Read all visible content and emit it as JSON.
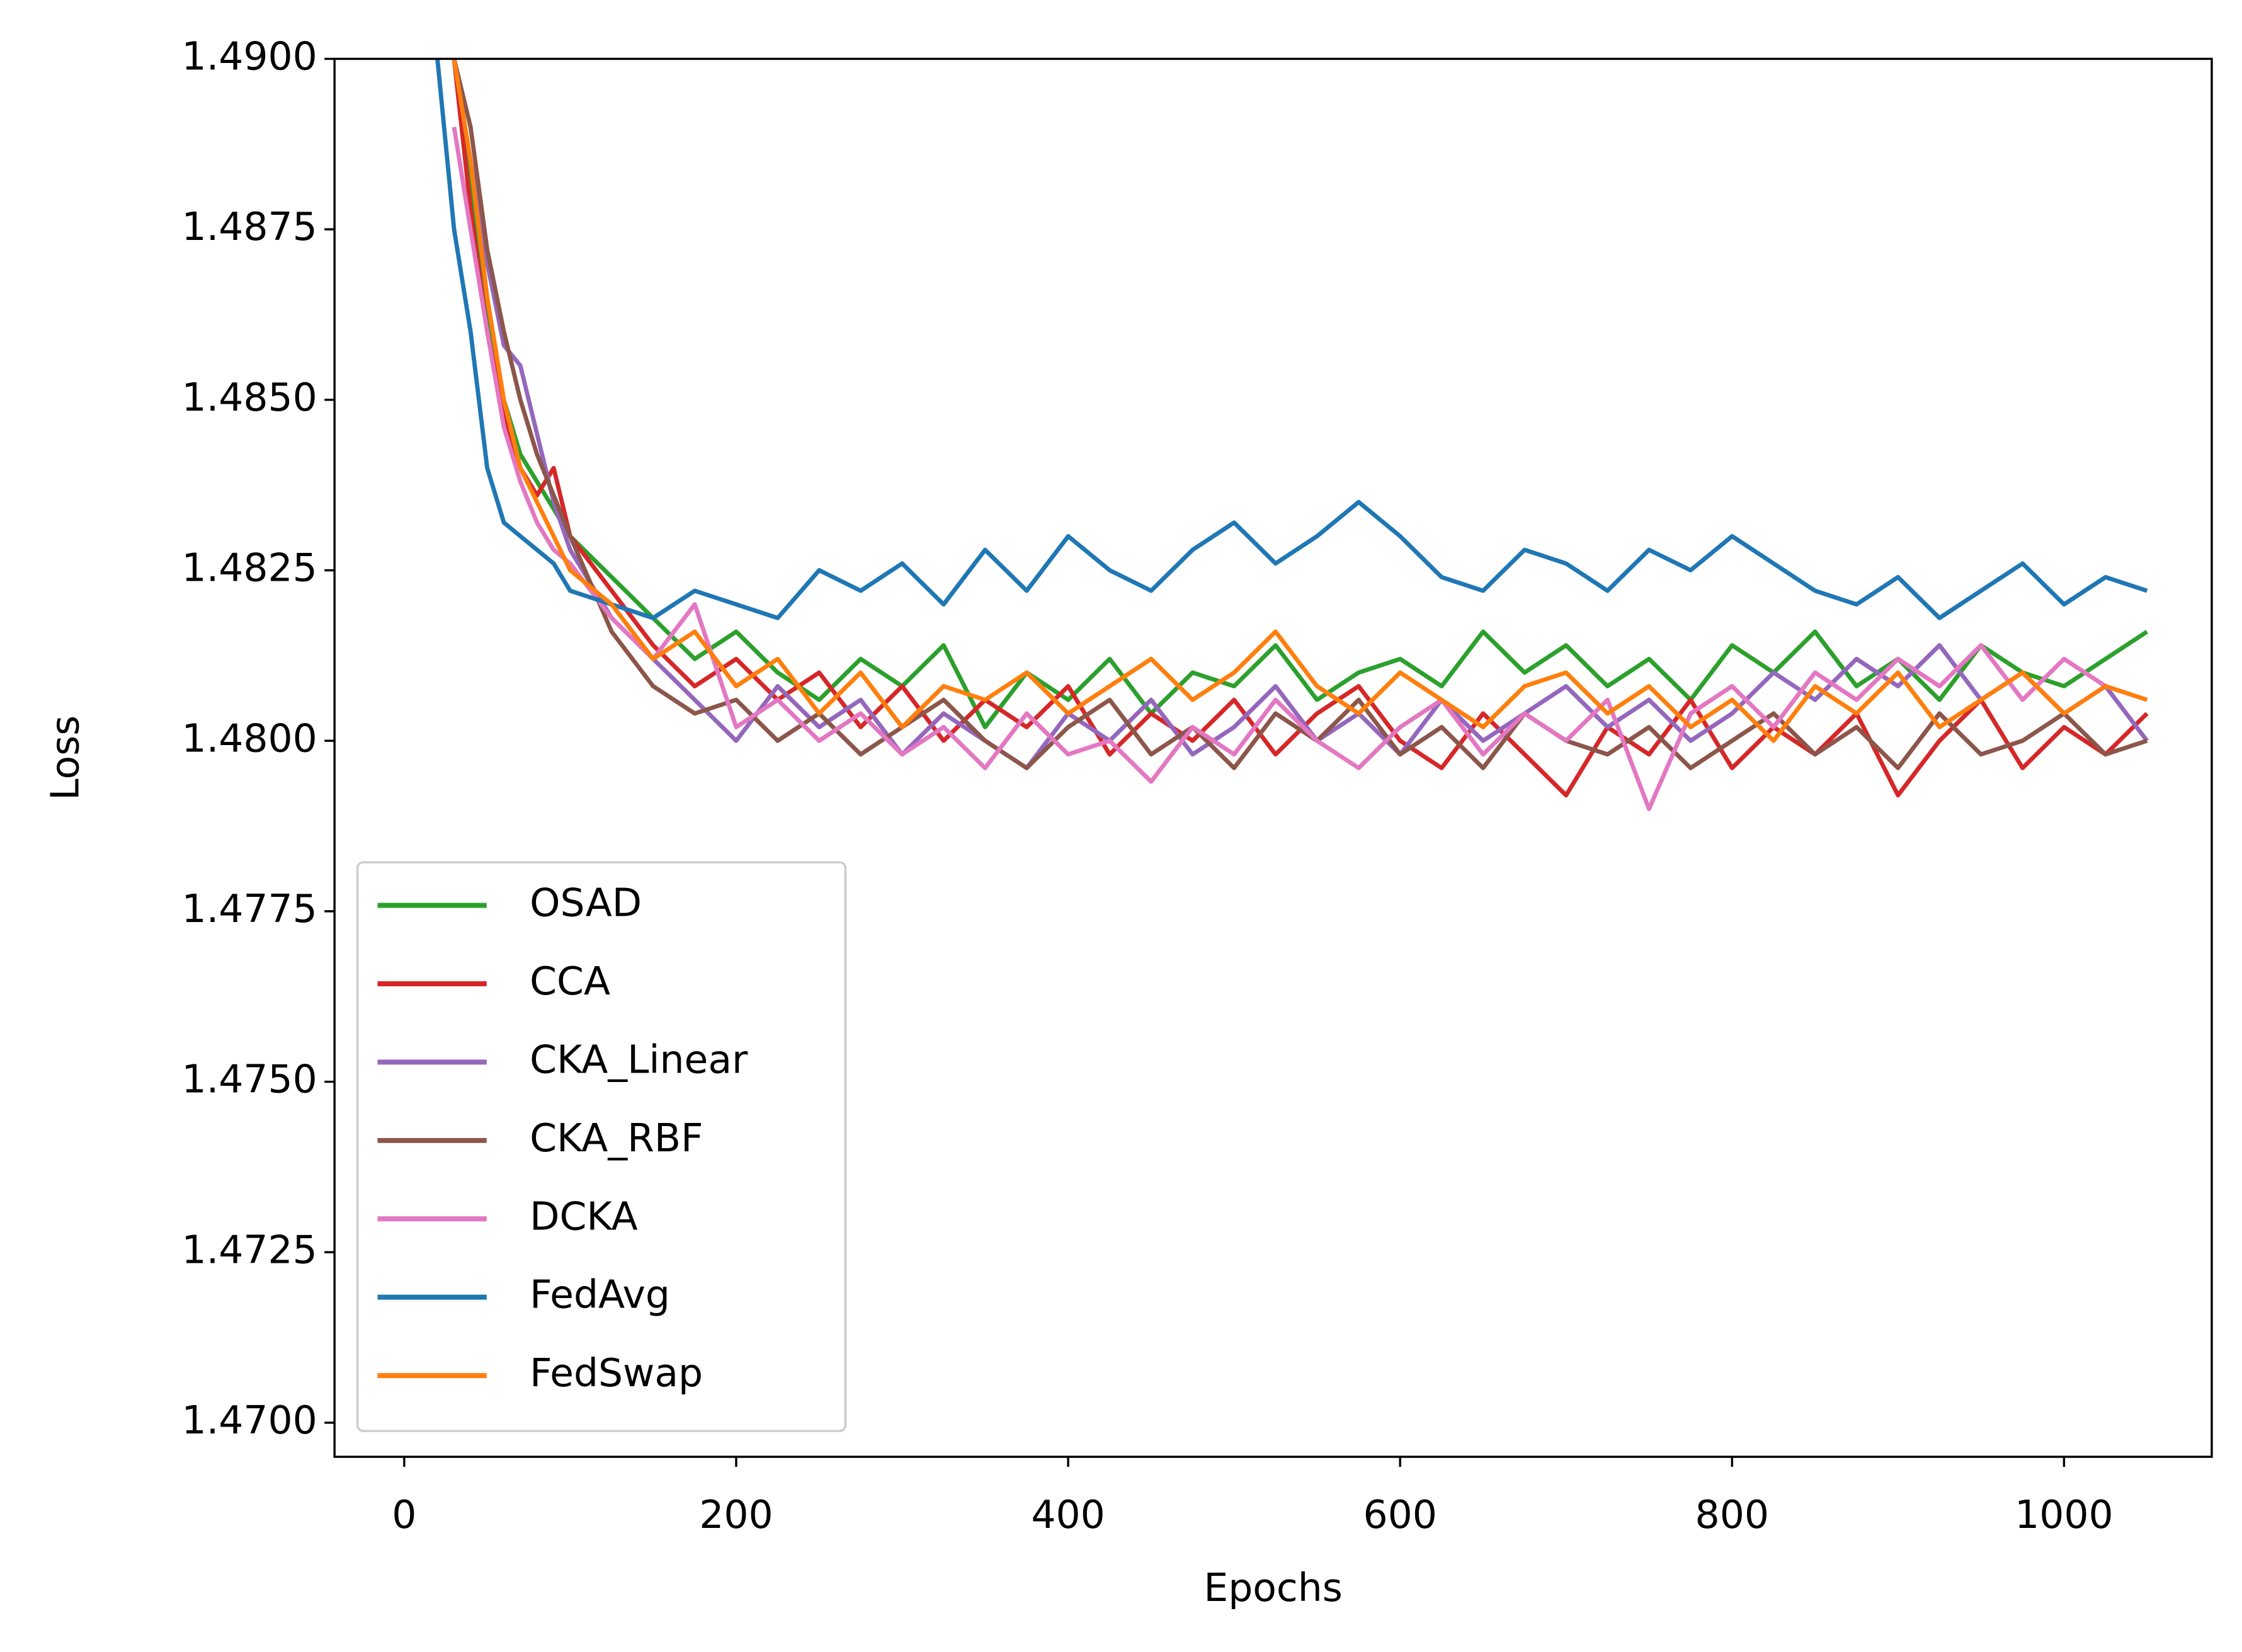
{
  "chart_data": {
    "type": "line",
    "xlabel": "Epochs",
    "ylabel": "Loss",
    "x": [
      20,
      30,
      40,
      50,
      60,
      70,
      80,
      90,
      100,
      125,
      150,
      175,
      200,
      225,
      250,
      275,
      300,
      325,
      350,
      375,
      400,
      425,
      450,
      475,
      500,
      525,
      550,
      575,
      600,
      625,
      650,
      675,
      700,
      725,
      750,
      775,
      800,
      825,
      850,
      875,
      900,
      925,
      950,
      975,
      1000,
      1025,
      1050
    ],
    "series": [
      {
        "name": "OSAD",
        "color": "#2ca02c",
        "values": [
          null,
          1.49,
          1.488,
          1.4862,
          1.485,
          1.4842,
          1.4838,
          1.4834,
          1.483,
          1.4824,
          1.4818,
          1.4812,
          1.4816,
          1.481,
          1.4806,
          1.4812,
          1.4808,
          1.4814,
          1.4802,
          1.481,
          1.4806,
          1.4812,
          1.4804,
          1.481,
          1.4808,
          1.4814,
          1.4806,
          1.481,
          1.4812,
          1.4808,
          1.4816,
          1.481,
          1.4814,
          1.4808,
          1.4812,
          1.4806,
          1.4814,
          1.481,
          1.4816,
          1.4808,
          1.4812,
          1.4806,
          1.4814,
          1.481,
          1.4808,
          1.4812,
          1.4816
        ]
      },
      {
        "name": "CCA",
        "color": "#d62728",
        "values": [
          null,
          1.49,
          1.4878,
          1.486,
          1.4848,
          1.484,
          1.4836,
          1.484,
          1.483,
          1.4822,
          1.4814,
          1.4808,
          1.4812,
          1.4806,
          1.481,
          1.4802,
          1.4808,
          1.48,
          1.4806,
          1.4802,
          1.4808,
          1.4798,
          1.4804,
          1.48,
          1.4806,
          1.4798,
          1.4804,
          1.4808,
          1.48,
          1.4796,
          1.4804,
          1.4798,
          1.4792,
          1.4802,
          1.4798,
          1.4806,
          1.4796,
          1.4802,
          1.4798,
          1.4804,
          1.4792,
          1.48,
          1.4806,
          1.4796,
          1.4802,
          1.4798,
          1.4804
        ]
      },
      {
        "name": "CKA_Linear",
        "color": "#9467bd",
        "values": [
          null,
          1.49,
          1.4885,
          1.487,
          1.4858,
          1.4855,
          1.4845,
          1.4835,
          1.4828,
          1.4818,
          1.4812,
          1.4806,
          1.48,
          1.4808,
          1.4802,
          1.4806,
          1.4798,
          1.4804,
          1.48,
          1.4796,
          1.4804,
          1.48,
          1.4806,
          1.4798,
          1.4802,
          1.4808,
          1.48,
          1.4804,
          1.4798,
          1.4806,
          1.48,
          1.4804,
          1.4808,
          1.4802,
          1.4806,
          1.48,
          1.4804,
          1.481,
          1.4806,
          1.4812,
          1.4808,
          1.4814,
          1.4806,
          1.481,
          1.4804,
          1.4808,
          1.48
        ]
      },
      {
        "name": "CKA_RBF",
        "color": "#8c564b",
        "values": [
          null,
          1.49,
          1.489,
          1.4872,
          1.486,
          1.485,
          1.4842,
          1.4836,
          1.483,
          1.4816,
          1.4808,
          1.4804,
          1.4806,
          1.48,
          1.4804,
          1.4798,
          1.4802,
          1.4806,
          1.48,
          1.4796,
          1.4802,
          1.4806,
          1.4798,
          1.4802,
          1.4796,
          1.4804,
          1.48,
          1.4806,
          1.4798,
          1.4802,
          1.4796,
          1.4804,
          1.48,
          1.4798,
          1.4802,
          1.4796,
          1.48,
          1.4804,
          1.4798,
          1.4802,
          1.4796,
          1.4804,
          1.4798,
          1.48,
          1.4804,
          1.4798,
          1.48
        ]
      },
      {
        "name": "DCKA",
        "color": "#e377c2",
        "values": [
          null,
          1.489,
          1.4875,
          1.486,
          1.4846,
          1.4838,
          1.4832,
          1.4828,
          1.4826,
          1.4818,
          1.4812,
          1.482,
          1.4802,
          1.4806,
          1.48,
          1.4804,
          1.4798,
          1.4802,
          1.4796,
          1.4804,
          1.4798,
          1.48,
          1.4794,
          1.4802,
          1.4798,
          1.4806,
          1.48,
          1.4796,
          1.4802,
          1.4806,
          1.4798,
          1.4804,
          1.48,
          1.4806,
          1.479,
          1.4804,
          1.4808,
          1.4802,
          1.481,
          1.4806,
          1.4812,
          1.4808,
          1.4814,
          1.4806,
          1.4812,
          1.4808,
          1.4806
        ]
      },
      {
        "name": "FedAvg",
        "color": "#1f77b4",
        "values": [
          1.49,
          1.4875,
          1.486,
          1.484,
          1.4832,
          1.483,
          1.4828,
          1.4826,
          1.4822,
          1.482,
          1.4818,
          1.4822,
          1.482,
          1.4818,
          1.4825,
          1.4822,
          1.4826,
          1.482,
          1.4828,
          1.4822,
          1.483,
          1.4825,
          1.4822,
          1.4828,
          1.4832,
          1.4826,
          1.483,
          1.4835,
          1.483,
          1.4824,
          1.4822,
          1.4828,
          1.4826,
          1.4822,
          1.4828,
          1.4825,
          1.483,
          1.4826,
          1.4822,
          1.482,
          1.4824,
          1.4818,
          1.4822,
          1.4826,
          1.482,
          1.4824,
          1.4822
        ]
      },
      {
        "name": "FedSwap",
        "color": "#ff7f0e",
        "values": [
          null,
          1.49,
          1.4885,
          1.4865,
          1.485,
          1.484,
          1.4835,
          1.483,
          1.4825,
          1.482,
          1.4812,
          1.4816,
          1.4808,
          1.4812,
          1.4804,
          1.481,
          1.4802,
          1.4808,
          1.4806,
          1.481,
          1.4804,
          1.4808,
          1.4812,
          1.4806,
          1.481,
          1.4816,
          1.4808,
          1.4804,
          1.481,
          1.4806,
          1.4802,
          1.4808,
          1.481,
          1.4804,
          1.4808,
          1.4802,
          1.4806,
          1.48,
          1.4808,
          1.4804,
          1.481,
          1.4802,
          1.4806,
          1.481,
          1.4804,
          1.4808,
          1.4806
        ]
      }
    ],
    "xlim": [
      -42,
      1089
    ],
    "ylim": [
      1.4695,
      1.49
    ],
    "xticks": [
      0,
      200,
      400,
      600,
      800,
      1000
    ],
    "yticks": [
      {
        "value": 1.47,
        "label": "1.4700"
      },
      {
        "value": 1.4725,
        "label": "1.4725"
      },
      {
        "value": 1.475,
        "label": "1.4750"
      },
      {
        "value": 1.4775,
        "label": "1.4775"
      },
      {
        "value": 1.48,
        "label": "1.4800"
      },
      {
        "value": 1.4825,
        "label": "1.4825"
      },
      {
        "value": 1.485,
        "label": "1.4850"
      },
      {
        "value": 1.4875,
        "label": "1.4875"
      },
      {
        "value": 1.49,
        "label": "1.4900"
      }
    ],
    "legend": "lower left",
    "grid": false
  }
}
